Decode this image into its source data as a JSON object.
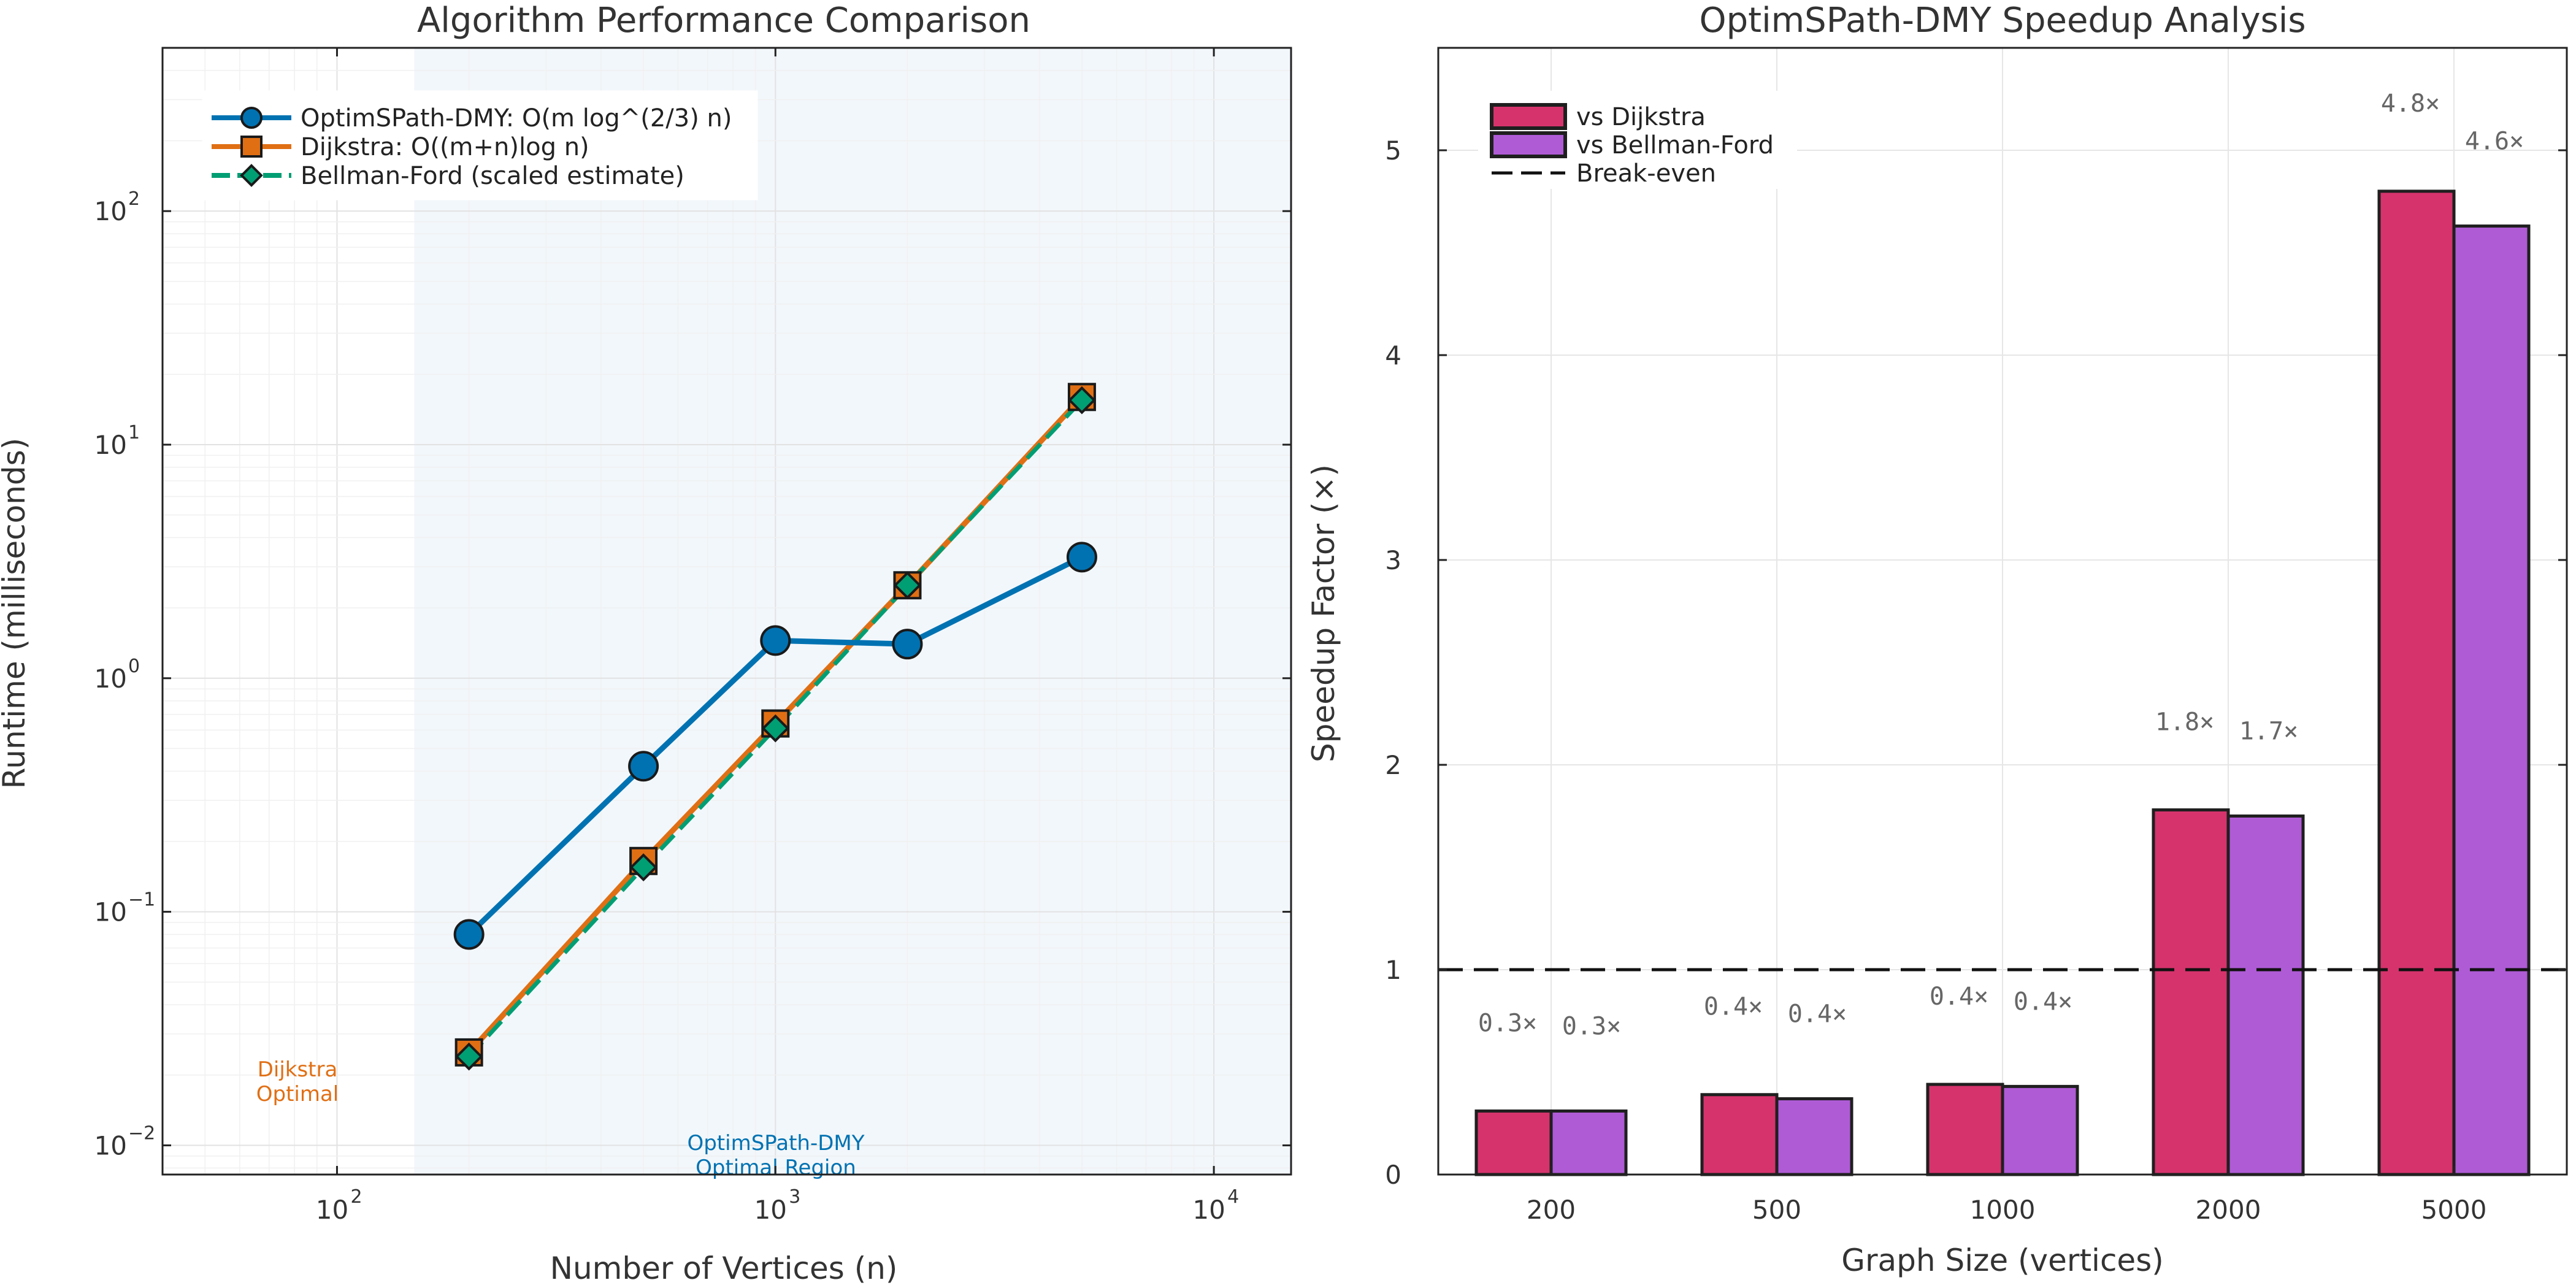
{
  "chart_data": [
    {
      "type": "line",
      "title": "Algorithm Performance Comparison",
      "xlabel": "Number of Vertices (n)",
      "ylabel": "Runtime (milliseconds)",
      "xscale": "log",
      "yscale": "log",
      "xlim": [
        40,
        15000
      ],
      "ylim": [
        0.0075,
        500
      ],
      "x_tick_labels": [
        {
          "base": "10",
          "exp": "2",
          "value": 100
        },
        {
          "base": "10",
          "exp": "3",
          "value": 1000
        },
        {
          "base": "10",
          "exp": "4",
          "value": 10000
        }
      ],
      "y_tick_labels": [
        {
          "base": "10",
          "exp": "−2",
          "value": 0.01
        },
        {
          "base": "10",
          "exp": "−1",
          "value": 0.1
        },
        {
          "base": "10",
          "exp": "0",
          "value": 1
        },
        {
          "base": "10",
          "exp": "1",
          "value": 10
        },
        {
          "base": "10",
          "exp": "2",
          "value": 100
        }
      ],
      "x": [
        200,
        500,
        1000,
        2000,
        5000
      ],
      "series": [
        {
          "name": "OptimSPath-DMY: O(m log^(2/3) n)",
          "color": "#0072b2",
          "marker": "circle",
          "line": "solid",
          "values": [
            0.08,
            0.42,
            1.45,
            1.4,
            3.3
          ]
        },
        {
          "name": "Dijkstra: O((m+n)log n)",
          "color": "#e06f14",
          "marker": "square",
          "line": "solid",
          "values": [
            0.025,
            0.165,
            0.64,
            2.5,
            16
          ]
        },
        {
          "name": "Bellman-Ford (scaled estimate)",
          "color": "#009e73",
          "marker": "diamond",
          "line": "dashed",
          "values": [
            0.024,
            0.155,
            0.61,
            2.5,
            15.5
          ]
        }
      ],
      "shaded_region_from_x": 150,
      "annotations": [
        {
          "text_lines": [
            "Dijkstra",
            "Optimal"
          ],
          "color": "#e06f14"
        },
        {
          "text_lines": [
            "OptimSPath-DMY",
            "Optimal Region"
          ],
          "color": "#0072b2"
        }
      ],
      "grid": true,
      "legend_position": "top-left"
    },
    {
      "type": "bar",
      "title": "OptimSPath-DMY Speedup Analysis",
      "xlabel": "Graph Size (vertices)",
      "ylabel": "Speedup Factor (×)",
      "categories": [
        "200",
        "500",
        "1000",
        "2000",
        "5000"
      ],
      "ylim": [
        0,
        5.5
      ],
      "y_ticks": [
        0,
        1,
        2,
        3,
        4,
        5
      ],
      "series": [
        {
          "name": "vs Dijkstra",
          "color": "#d6336c",
          "values": [
            0.31,
            0.39,
            0.44,
            1.78,
            4.8
          ],
          "labels": [
            "0.3×",
            "0.4×",
            "0.4×",
            "1.8×",
            "4.8×"
          ]
        },
        {
          "name": "vs Bellman-Ford",
          "color": "#af5bd6",
          "values": [
            0.31,
            0.37,
            0.43,
            1.75,
            4.63
          ],
          "labels": [
            "0.3×",
            "0.4×",
            "0.4×",
            "1.7×",
            "4.6×"
          ]
        }
      ],
      "reference_line": {
        "name": "Break-even",
        "value": 1,
        "style": "dashed"
      },
      "grid": true,
      "legend_position": "top-left"
    }
  ]
}
